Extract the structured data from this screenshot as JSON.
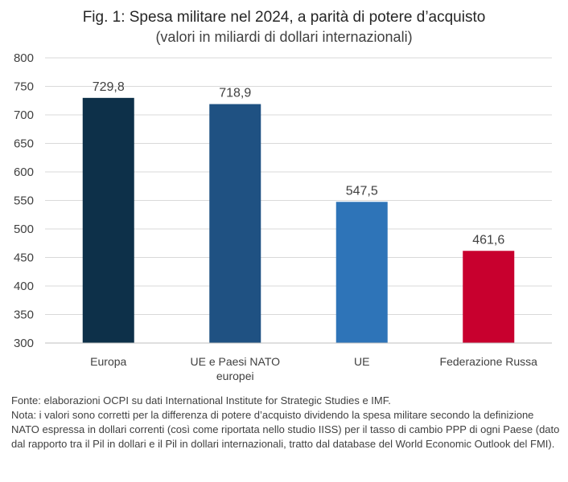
{
  "chart_data": {
    "type": "bar",
    "title": "Fig. 1: Spesa militare nel 2024, a parità di potere d’acquisto",
    "subtitle": "(valori in miliardi di dollari internazionali)",
    "categories": [
      "Europa",
      "UE e Paesi NATO europei",
      "UE",
      "Federazione Russa"
    ],
    "category_lines": [
      [
        "Europa"
      ],
      [
        "UE e Paesi NATO",
        "europei"
      ],
      [
        "UE"
      ],
      [
        "Federazione Russa"
      ]
    ],
    "values": [
      729.8,
      718.9,
      547.5,
      461.6
    ],
    "value_labels": [
      "729,8",
      "718,9",
      "547,5",
      "461,6"
    ],
    "colors": [
      "#0d3049",
      "#1f5182",
      "#2e74b8",
      "#c8002e"
    ],
    "ylim": [
      300,
      800
    ],
    "yticks": [
      300,
      350,
      400,
      450,
      500,
      550,
      600,
      650,
      700,
      750,
      800
    ],
    "grid": true,
    "legend": "none"
  },
  "notes": {
    "source": "Fonte: elaborazioni OCPI su dati International Institute for Strategic Studies e IMF.",
    "note": "Nota: i valori sono corretti per la differenza di potere d’acquisto dividendo la spesa militare secondo la definizione NATO espressa in dollari correnti (così come riportata nello studio IISS) per il tasso di cambio PPP di ogni Paese (dato dal rapporto tra il Pil in dollari e il Pil in dollari internazionali, tratto dal database del World Economic Outlook del FMI)."
  }
}
